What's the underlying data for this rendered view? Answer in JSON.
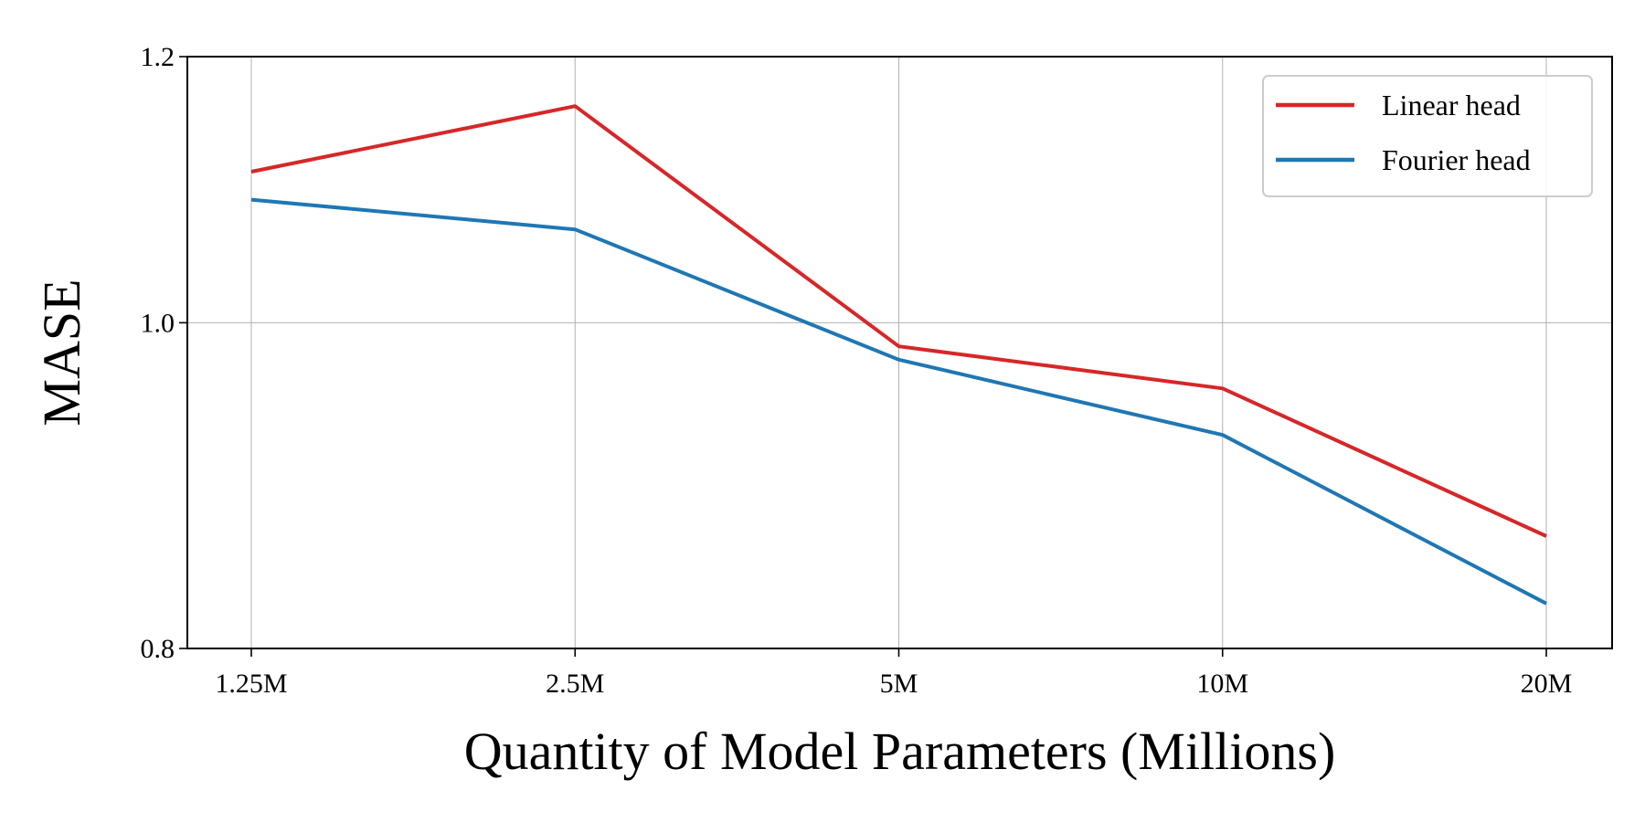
{
  "chart_data": {
    "type": "line",
    "categories": [
      "1.25M",
      "2.5M",
      "5M",
      "10M",
      "20M"
    ],
    "series": [
      {
        "name": "Linear head",
        "color": "#d62728",
        "values": [
          1.109,
          1.16,
          0.984,
          0.956,
          0.864
        ]
      },
      {
        "name": "Fourier head",
        "color": "#1f77b4",
        "values": [
          1.088,
          1.066,
          0.975,
          0.926,
          0.825
        ]
      }
    ],
    "xlabel": "Quantity of Model Parameters (Millions)",
    "ylabel": "MASE",
    "ylim": [
      0.8,
      1.2
    ],
    "y_scale": "log",
    "yticks": [
      "0.8",
      "1.0",
      "1.2"
    ],
    "grid": true,
    "legend_position": "top-right"
  }
}
